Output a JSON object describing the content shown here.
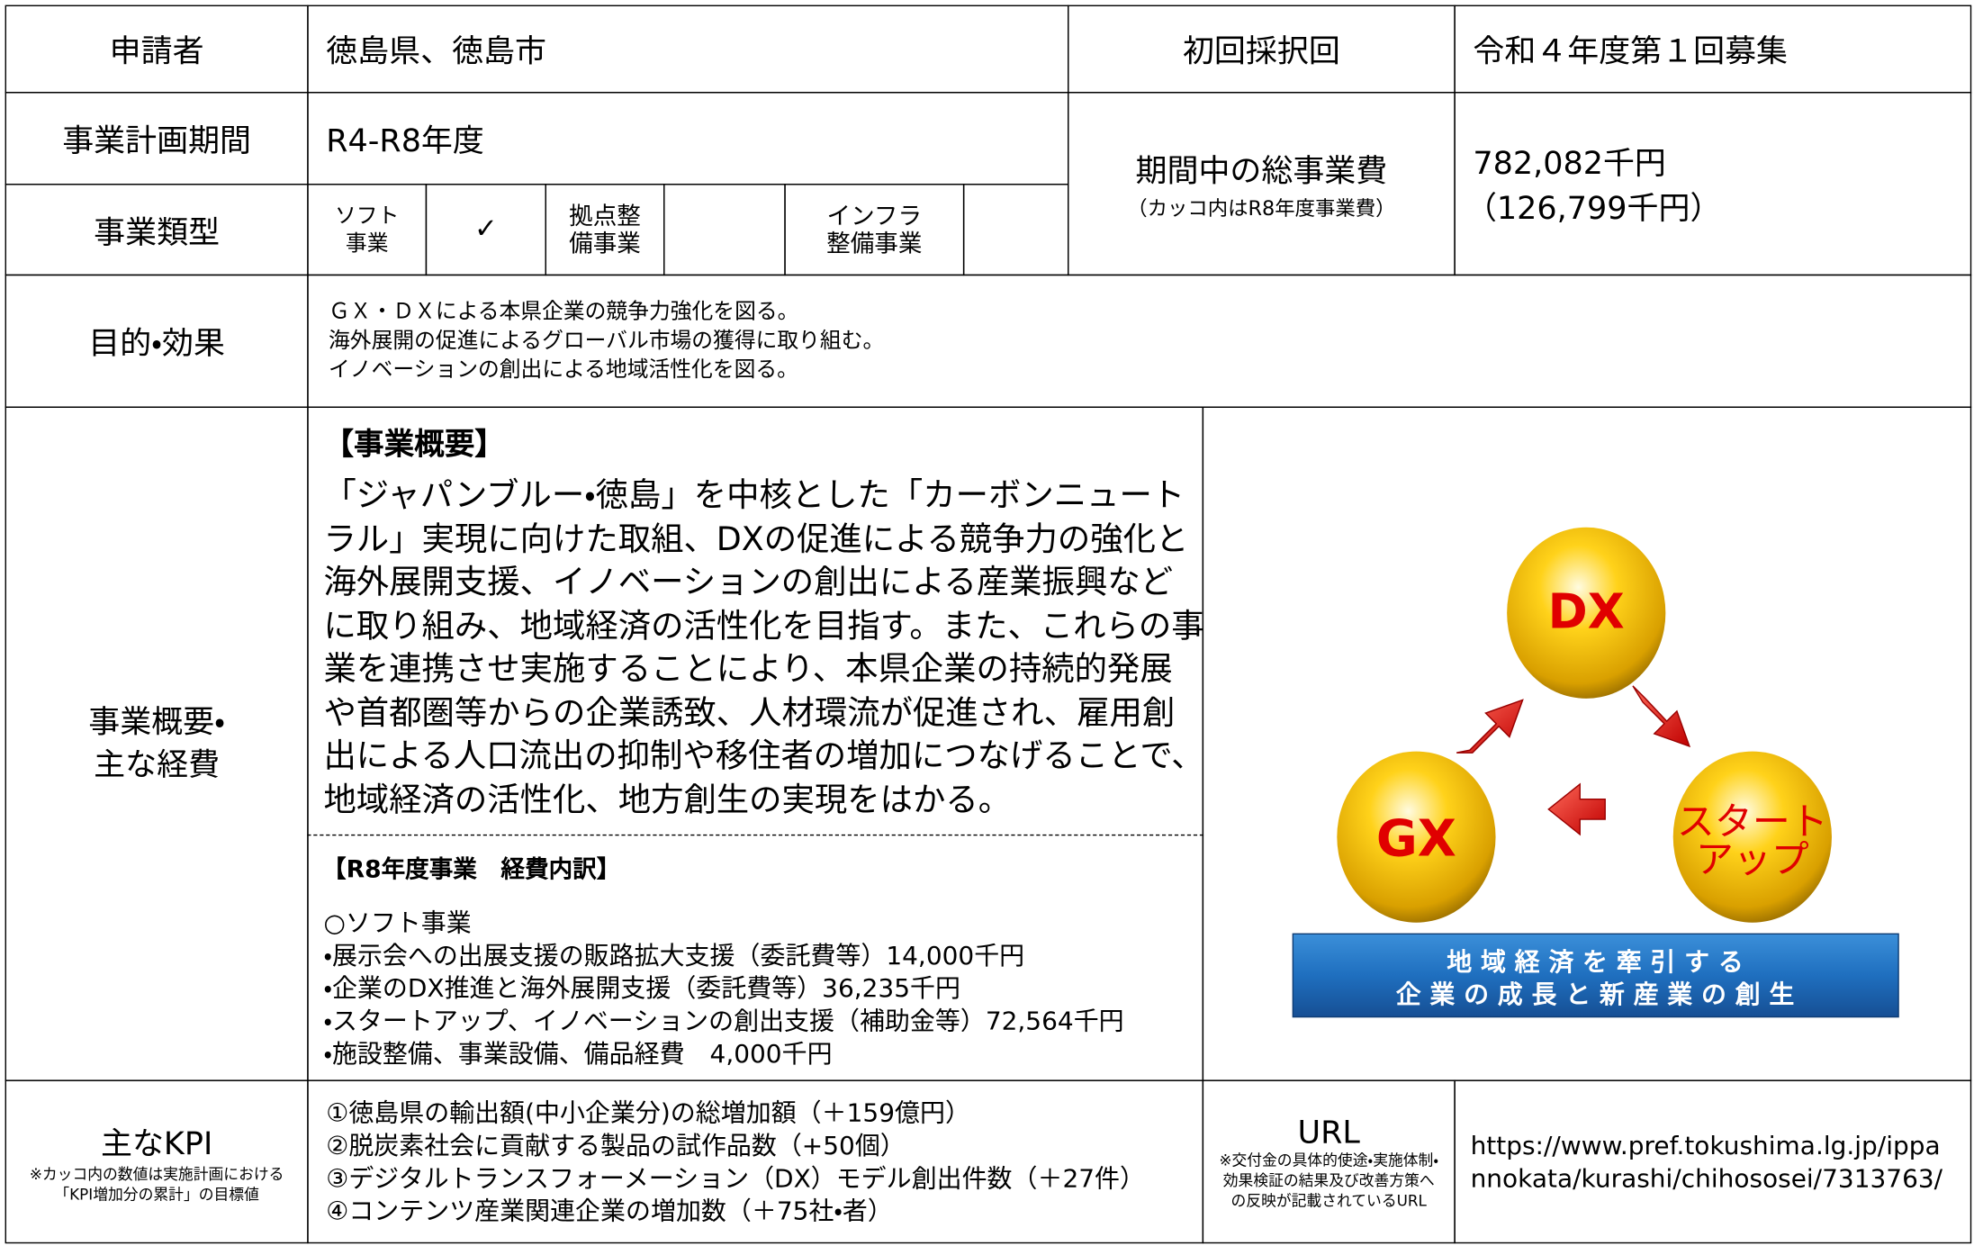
{
  "applicant": {
    "label": "申請者",
    "value": "徳島県、徳島市"
  },
  "first_round": {
    "label": "初回採択回",
    "value": "令和４年度第１回募集"
  },
  "plan_period": {
    "label": "事業計画期間",
    "value": "R4-R8年度"
  },
  "total_cost": {
    "label": "期間中の総事業費",
    "note": "（カッコ内はR8年度事業費）",
    "value": "782,082千円",
    "sub_value": "（126,799千円）"
  },
  "project_type": {
    "label": "事業類型",
    "options": [
      {
        "label": "ソフト\n事業",
        "check": "✓"
      },
      {
        "label": "拠点整\n備事業",
        "check": ""
      },
      {
        "label": "インフラ\n整備事業",
        "check": ""
      }
    ]
  },
  "purpose": {
    "label": "目的・効果",
    "lines": [
      "ＧＸ・ＤＸによる本県企業の競争力強化を図る。",
      "海外展開の促進によるグローバル市場の獲得に取り組む。",
      "イノベーションの創出による地域活性化を図る。"
    ]
  },
  "overview": {
    "label": "事業概要・\n主な経費",
    "heading": "【事業概要】",
    "text": "「ジャパンブルー・徳島」を中核とした「カーボンニュートラル」実現に向けた取組、DXの促進による競争力の強化と海外展開支援、イノベーションの創出による産業振興などに取り組み、地域経済の活性化を目指す。また、これらの事業を連携させ実施することにより、本県企業の持続的発展や首都圏等からの企業誘致、人材環流が促進され、雇用創出による人口流出の抑制や移住者の増加につなげることで、地域経済の活性化、地方創生の実現をはかる。",
    "cost_heading": "【R8年度事業　経費内訳】",
    "cost_lines": [
      "○ソフト事業",
      "・展示会への出展支援の販路拡大支援（委託費等）14,000千円",
      "・企業のDX推進と海外展開支援（委託費等）36,235千円",
      "・スタートアップ、イノベーションの創出支援（補助金等）72,564千円",
      "・施設整備、事業設備、備品経費　4,000千円"
    ]
  },
  "diagram": {
    "nodes": [
      "DX",
      "GX",
      "スタート\nアップ"
    ],
    "banner": [
      "地 域 経 済 を 牽 引 す る",
      "企 業 の 成 長 と 新 産 業 の 創 生"
    ]
  },
  "kpi": {
    "label": "主なKPI",
    "note": "※カッコ内の数値は実施計画における「KPI増加分の累計」の目標値",
    "items": [
      "①徳島県の輸出額(中小企業分)の総増加額（＋159億円）",
      "②脱炭素社会に貢献する製品の試作品数（+50個）",
      "③デジタルトランスフォーメーション（DX）モデル創出件数（＋27件）",
      "④コンテンツ産業関連企業の増加数（＋75社・者）"
    ]
  },
  "url": {
    "label": "URL",
    "note": "※交付金の具体的使途・実施体制・効果検証の結果及び改善方策への反映が記載されているURL",
    "value": "https://www.pref.tokushima.lg.jp/ippannokata/kurashi/chihososei/7313763/"
  }
}
